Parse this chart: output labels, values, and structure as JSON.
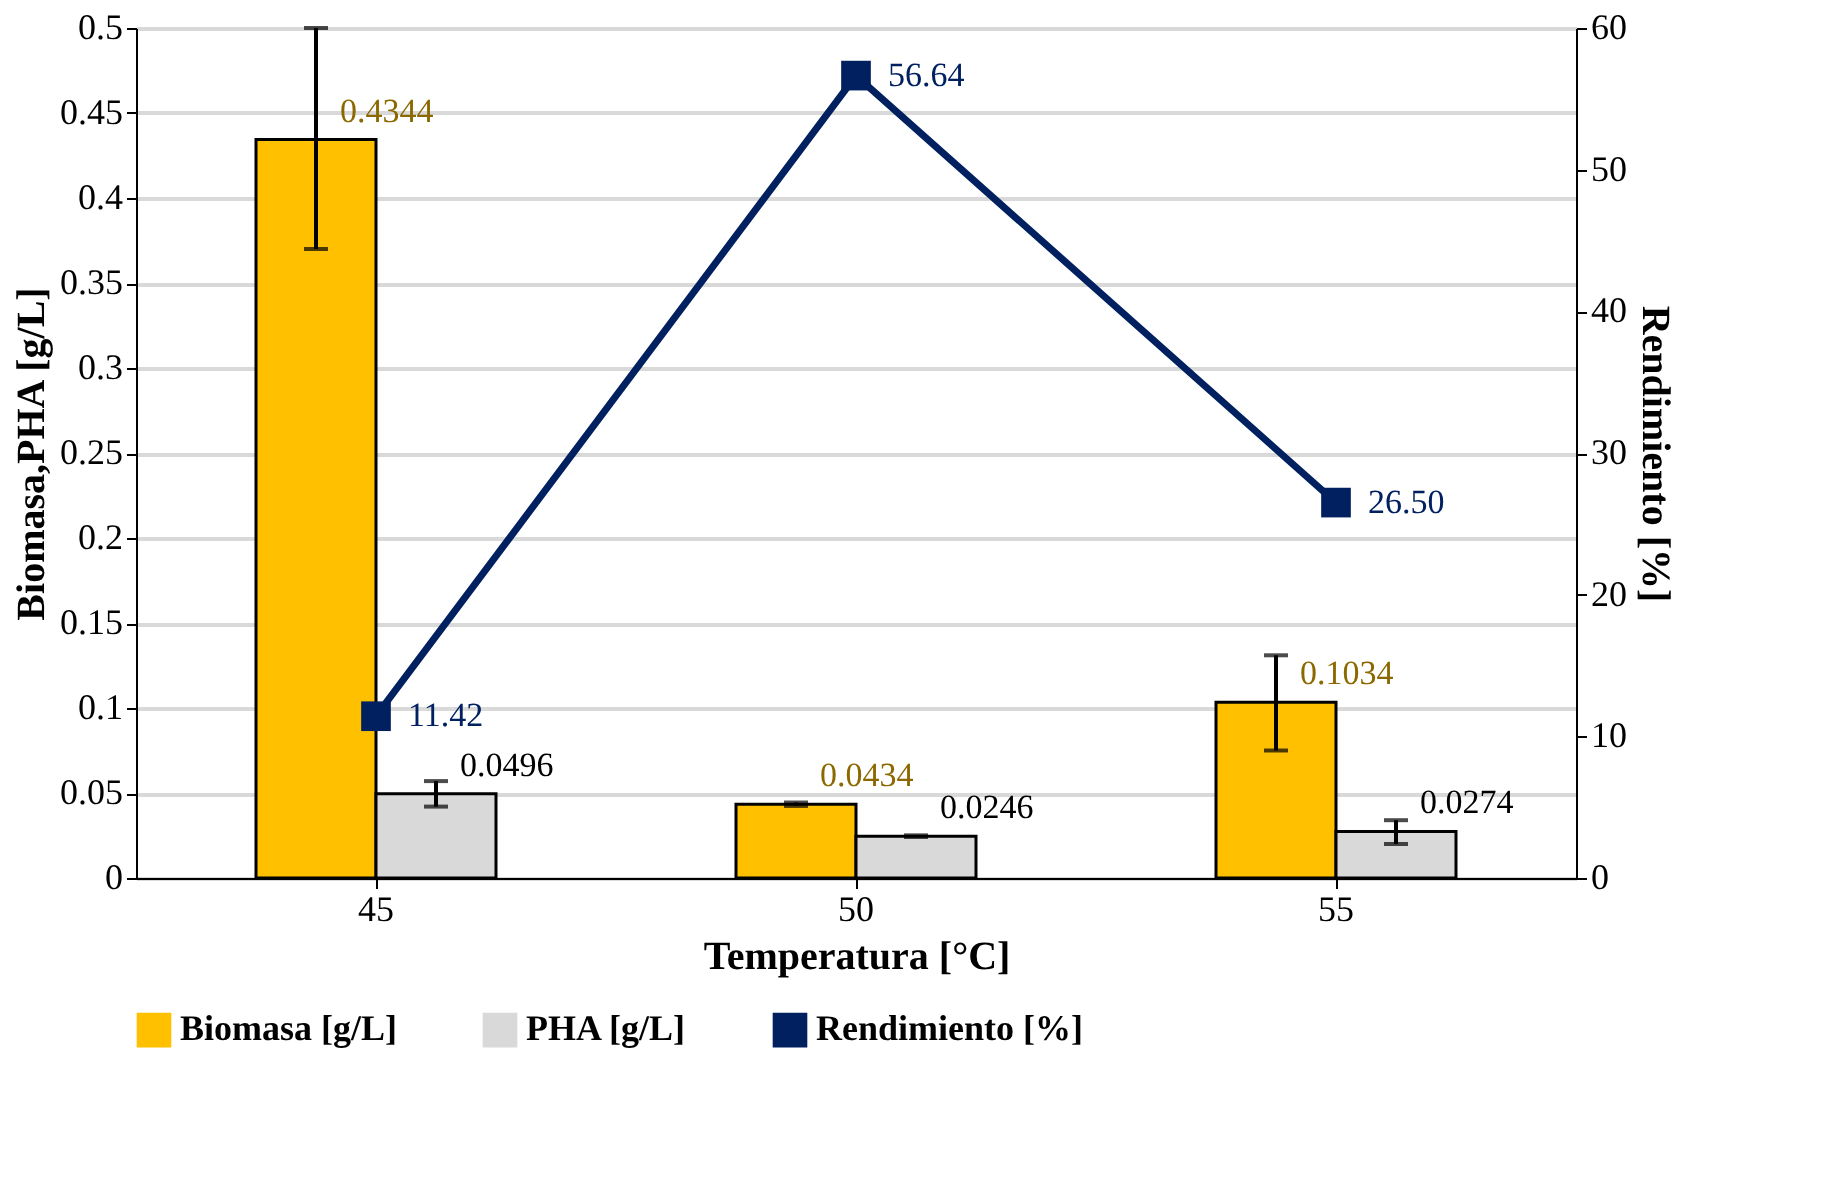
{
  "chart_data": {
    "type": "bar",
    "xlabel": "Temperatura [°C]",
    "ylabel": "Biomasa,PHA [g/L]",
    "y2label": "Rendimiento [%]",
    "categories": [
      "45",
      "50",
      "55"
    ],
    "series": [
      {
        "name": "Biomasa [g/L]",
        "color": "#ffc000",
        "values": [
          0.4344,
          0.0434,
          0.1034
        ],
        "errors": [
          [
            0.37,
            0.5
          ],
          0.001,
          [
            0.075,
            0.131
          ]
        ]
      },
      {
        "name": "PHA [g/L]",
        "color": "#d9d9d9",
        "values": [
          0.0496,
          0.0246,
          0.0274
        ],
        "errors": [
          [
            0.042,
            0.057
          ],
          0.0005,
          [
            0.02,
            0.034
          ]
        ]
      },
      {
        "name": "Rendimiento [%]",
        "type": "line",
        "axis": "y2",
        "color": "#002060",
        "marker": "square",
        "values": [
          11.42,
          56.64,
          26.5
        ],
        "value_labels": [
          "11.42",
          "56.64",
          "26.50"
        ],
        "line_style": "solid"
      }
    ],
    "ylim": [
      0,
      0.5
    ],
    "yticks": [
      0,
      0.05,
      0.1,
      0.15,
      0.2,
      0.25,
      0.3,
      0.35,
      0.4,
      0.45,
      0.5
    ],
    "y2lim": [
      0,
      60
    ],
    "y2ticks": [
      0,
      10,
      20,
      30,
      40,
      50,
      60
    ],
    "data_labels": true,
    "grid": "y",
    "legend": "bottom"
  }
}
